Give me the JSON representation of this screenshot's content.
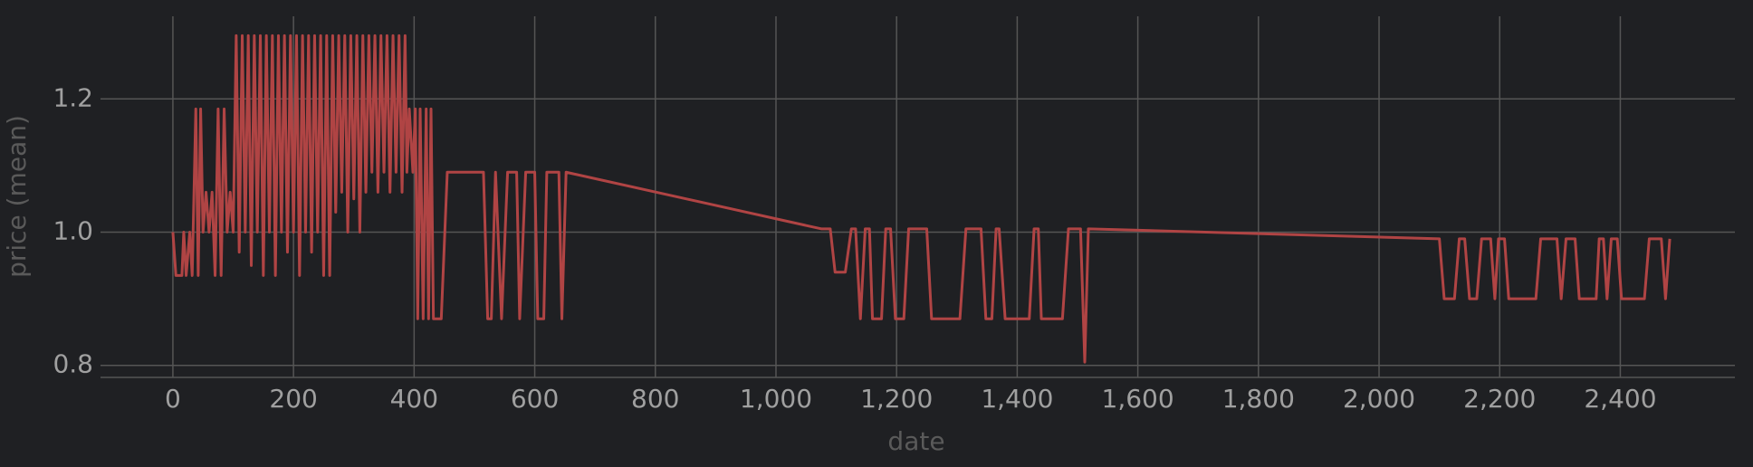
{
  "chart_data": {
    "type": "line",
    "x_label": "date",
    "y_label": "price (mean)",
    "xlim": [
      -120,
      2590
    ],
    "ylim": [
      0.782,
      1.324
    ],
    "xticks": [
      0,
      200,
      400,
      600,
      800,
      {
        "value": 1000,
        "label": "1,000"
      },
      {
        "value": 1200,
        "label": "1,200"
      },
      {
        "value": 1400,
        "label": "1,400"
      },
      {
        "value": 1600,
        "label": "1,600"
      },
      {
        "value": 1800,
        "label": "1,800"
      },
      {
        "value": 2000,
        "label": "2,000"
      },
      {
        "value": 2200,
        "label": "2,200"
      },
      {
        "value": 2400,
        "label": "2,400"
      }
    ],
    "yticks": [
      0.8,
      {
        "value": 1,
        "label": "1.0"
      },
      1.2
    ],
    "grid": true,
    "series": [
      {
        "color": "#b04444",
        "x": [
          0,
          5,
          15,
          18,
          22,
          28,
          32,
          38,
          42,
          46,
          50,
          55,
          60,
          65,
          70,
          75,
          80,
          85,
          90,
          95,
          100,
          105,
          110,
          115,
          120,
          125,
          130,
          135,
          140,
          145,
          150,
          155,
          160,
          165,
          170,
          175,
          180,
          185,
          190,
          195,
          200,
          205,
          210,
          215,
          220,
          225,
          230,
          235,
          240,
          245,
          250,
          255,
          260,
          265,
          270,
          275,
          280,
          285,
          290,
          295,
          300,
          305,
          310,
          315,
          320,
          325,
          330,
          335,
          340,
          345,
          350,
          355,
          360,
          365,
          370,
          375,
          380,
          385,
          388,
          392,
          398,
          402,
          406,
          410,
          415,
          420,
          424,
          428,
          432,
          445,
          455,
          515,
          522,
          528,
          535,
          545,
          555,
          570,
          575,
          585,
          600,
          605,
          615,
          620,
          640,
          645,
          652,
          1075,
          1090,
          1098,
          1115,
          1125,
          1132,
          1140,
          1148,
          1155,
          1160,
          1175,
          1182,
          1190,
          1198,
          1212,
          1220,
          1250,
          1258,
          1305,
          1315,
          1340,
          1348,
          1358,
          1365,
          1370,
          1380,
          1420,
          1428,
          1435,
          1440,
          1475,
          1485,
          1505,
          1512,
          1518,
          2100,
          2108,
          2125,
          2133,
          2142,
          2150,
          2162,
          2170,
          2185,
          2192,
          2198,
          2208,
          2215,
          2260,
          2268,
          2295,
          2302,
          2310,
          2325,
          2332,
          2360,
          2365,
          2372,
          2378,
          2385,
          2395,
          2402,
          2440,
          2448,
          2468,
          2475,
          2482
        ],
        "values": [
          1.0,
          0.935,
          0.935,
          1.0,
          0.935,
          1.0,
          0.935,
          1.185,
          0.935,
          1.185,
          1.0,
          1.06,
          1.0,
          1.06,
          0.935,
          1.185,
          0.935,
          1.185,
          1.0,
          1.06,
          1.0,
          1.295,
          0.97,
          1.295,
          1.0,
          1.295,
          0.95,
          1.295,
          1.0,
          1.295,
          0.935,
          1.295,
          1.0,
          1.295,
          0.935,
          1.295,
          1.0,
          1.295,
          0.97,
          1.295,
          1.0,
          1.295,
          0.935,
          1.295,
          1.0,
          1.295,
          0.97,
          1.295,
          1.0,
          1.295,
          0.935,
          1.295,
          0.935,
          1.295,
          1.03,
          1.295,
          1.06,
          1.295,
          1.0,
          1.295,
          1.05,
          1.295,
          1.0,
          1.295,
          1.06,
          1.295,
          1.09,
          1.295,
          1.06,
          1.295,
          1.09,
          1.295,
          1.06,
          1.295,
          1.09,
          1.295,
          1.06,
          1.295,
          1.09,
          1.185,
          1.09,
          1.185,
          0.87,
          1.185,
          0.87,
          1.185,
          0.87,
          1.185,
          0.87,
          0.87,
          1.09,
          1.09,
          0.87,
          0.87,
          1.09,
          0.87,
          1.09,
          1.09,
          0.87,
          1.09,
          1.09,
          0.87,
          0.87,
          1.09,
          1.09,
          0.87,
          1.09,
          1.005,
          1.005,
          0.94,
          0.94,
          1.005,
          1.005,
          0.87,
          1.005,
          1.005,
          0.87,
          0.87,
          1.005,
          1.005,
          0.87,
          0.87,
          1.005,
          1.005,
          0.87,
          0.87,
          1.005,
          1.005,
          0.87,
          0.87,
          1.005,
          1.005,
          0.87,
          0.87,
          1.005,
          1.005,
          0.87,
          0.87,
          1.005,
          1.005,
          0.805,
          1.005,
          0.99,
          0.9,
          0.9,
          0.99,
          0.99,
          0.9,
          0.9,
          0.99,
          0.99,
          0.9,
          0.99,
          0.99,
          0.9,
          0.9,
          0.99,
          0.99,
          0.9,
          0.99,
          0.99,
          0.9,
          0.9,
          0.99,
          0.99,
          0.9,
          0.99,
          0.99,
          0.9,
          0.9,
          0.99,
          0.99,
          0.9,
          0.99
        ]
      }
    ]
  }
}
